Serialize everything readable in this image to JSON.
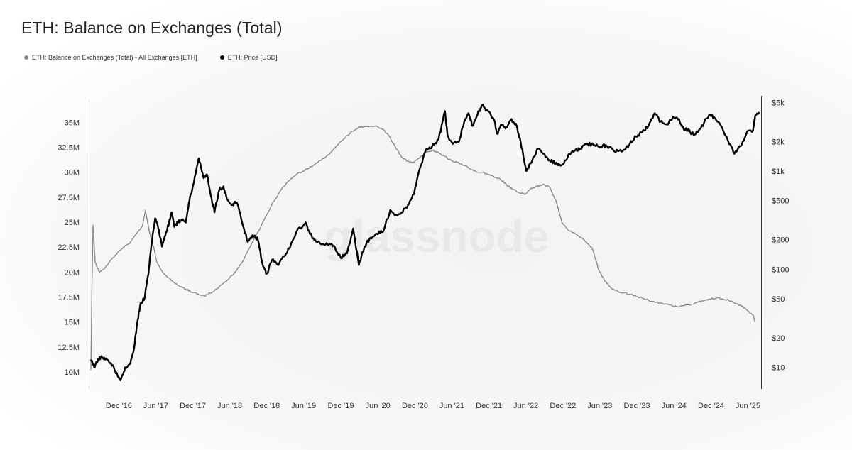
{
  "title": "ETH: Balance on Exchanges (Total)",
  "watermark": "glassnode",
  "legend": [
    {
      "label": "ETH: Balance on Exchanges (Total) - All Exchanges [ETH]",
      "color": "#8a8a8a"
    },
    {
      "label": "ETH: Price [USD]",
      "color": "#000000"
    }
  ],
  "chart_data": {
    "type": "line",
    "title": "ETH: Balance on Exchanges (Total)",
    "x_ticks": [
      "Dec '16",
      "Jun '17",
      "Dec '17",
      "Jun '18",
      "Dec '18",
      "Jun '19",
      "Dec '19",
      "Jun '20",
      "Dec '20",
      "Jun '21",
      "Dec '21",
      "Jun '22",
      "Dec '22",
      "Jun '23",
      "Dec '23",
      "Jun '24",
      "Dec '24",
      "Jun '25"
    ],
    "y_left": {
      "ticks": [
        "10M",
        "12.5M",
        "15M",
        "17.5M",
        "20M",
        "22.5M",
        "25M",
        "27.5M",
        "30M",
        "32.5M",
        "35M"
      ],
      "range": [
        8.3,
        37.3
      ],
      "unit": "M ETH"
    },
    "y_right": {
      "scale": "log",
      "ticks": [
        "$10",
        "$20",
        "$50",
        "$100",
        "$200",
        "$500",
        "$1k",
        "$2k",
        "$5k"
      ],
      "tick_values": [
        10,
        20,
        50,
        100,
        200,
        500,
        1000,
        2000,
        5000
      ],
      "range": [
        6,
        5400
      ]
    },
    "grid": false,
    "legend_position": "top-left",
    "series": [
      {
        "name": "ETH: Balance on Exchanges (Total) - All Exchanges [ETH]",
        "axis": "left",
        "color": "#8a8a8a",
        "x": [
          "2016-07-30",
          "2016-08-05",
          "2016-08-10",
          "2016-08-20",
          "2016-09-10",
          "2016-10-10",
          "2016-11-10",
          "2016-12-10",
          "2017-01-10",
          "2017-02-10",
          "2017-03-10",
          "2017-04-10",
          "2017-04-25",
          "2017-05-15",
          "2017-06-05",
          "2017-06-20",
          "2017-07-10",
          "2017-08-10",
          "2017-09-10",
          "2017-10-10",
          "2017-11-10",
          "2017-12-10",
          "2018-01-10",
          "2018-02-10",
          "2018-03-10",
          "2018-04-10",
          "2018-05-10",
          "2018-06-10",
          "2018-07-10",
          "2018-08-10",
          "2018-09-10",
          "2018-10-10",
          "2018-11-10",
          "2018-12-10",
          "2019-01-10",
          "2019-02-10",
          "2019-03-10",
          "2019-04-10",
          "2019-05-10",
          "2019-06-10",
          "2019-07-10",
          "2019-08-10",
          "2019-09-10",
          "2019-10-10",
          "2019-11-10",
          "2019-12-10",
          "2020-01-10",
          "2020-02-10",
          "2020-03-10",
          "2020-04-10",
          "2020-05-10",
          "2020-06-10",
          "2020-07-10",
          "2020-08-10",
          "2020-09-10",
          "2020-10-10",
          "2020-11-10",
          "2020-12-10",
          "2021-01-10",
          "2021-02-10",
          "2021-03-10",
          "2021-04-10",
          "2021-05-10",
          "2021-06-10",
          "2021-07-10",
          "2021-08-10",
          "2021-09-10",
          "2021-10-10",
          "2021-11-10",
          "2021-12-10",
          "2022-01-10",
          "2022-02-10",
          "2022-03-10",
          "2022-04-10",
          "2022-05-10",
          "2022-06-10",
          "2022-07-10",
          "2022-08-10",
          "2022-09-10",
          "2022-10-10",
          "2022-11-10",
          "2022-12-10",
          "2023-01-10",
          "2023-02-10",
          "2023-03-10",
          "2023-04-10",
          "2023-05-10",
          "2023-06-10",
          "2023-07-10",
          "2023-08-10",
          "2023-09-10",
          "2023-10-10",
          "2023-11-10",
          "2023-12-10",
          "2024-01-10",
          "2024-02-10",
          "2024-03-10",
          "2024-04-10",
          "2024-05-10",
          "2024-06-10",
          "2024-07-10",
          "2024-08-10",
          "2024-09-10",
          "2024-10-10",
          "2024-11-10",
          "2024-12-10",
          "2025-01-10",
          "2025-02-10",
          "2025-03-10",
          "2025-04-10",
          "2025-05-10",
          "2025-06-10",
          "2025-07-10",
          "2025-07-20"
        ],
        "values": [
          10.2,
          19.5,
          24.7,
          21.0,
          20.0,
          20.5,
          21.3,
          22.0,
          22.5,
          23.0,
          23.8,
          24.6,
          26.2,
          24.0,
          22.5,
          21.0,
          20.3,
          19.5,
          19.0,
          18.6,
          18.3,
          18.0,
          17.8,
          17.6,
          17.9,
          18.3,
          18.8,
          19.3,
          20.0,
          20.8,
          22.0,
          23.2,
          24.3,
          25.6,
          26.8,
          27.8,
          28.6,
          29.3,
          29.8,
          30.1,
          30.4,
          30.8,
          31.2,
          31.7,
          32.3,
          33.0,
          33.6,
          34.1,
          34.5,
          34.6,
          34.6,
          34.6,
          34.3,
          33.6,
          32.5,
          31.5,
          31.1,
          31.0,
          31.5,
          32.0,
          32.2,
          32.0,
          31.6,
          31.2,
          31.0,
          30.7,
          30.4,
          30.1,
          30.0,
          29.8,
          29.5,
          29.3,
          28.8,
          28.3,
          28.0,
          27.8,
          28.4,
          28.6,
          28.8,
          28.5,
          27.2,
          25.0,
          24.2,
          23.9,
          23.5,
          23.0,
          22.3,
          20.2,
          19.1,
          18.4,
          18.1,
          17.9,
          17.8,
          17.6,
          17.4,
          17.2,
          17.0,
          16.9,
          16.8,
          16.6,
          16.5,
          16.7,
          16.8,
          17.0,
          17.1,
          17.3,
          17.4,
          17.3,
          17.2,
          16.9,
          16.7,
          16.2,
          15.7,
          15.0
        ]
      },
      {
        "name": "ETH: Price [USD]",
        "axis": "right",
        "color": "#000000",
        "x": [
          "2016-07-30",
          "2016-08-15",
          "2016-09-01",
          "2016-09-20",
          "2016-10-10",
          "2016-11-01",
          "2016-11-20",
          "2016-12-10",
          "2016-12-25",
          "2017-01-15",
          "2017-02-10",
          "2017-03-01",
          "2017-03-15",
          "2017-04-01",
          "2017-04-20",
          "2017-05-10",
          "2017-05-25",
          "2017-06-12",
          "2017-07-01",
          "2017-07-16",
          "2017-08-01",
          "2017-08-20",
          "2017-09-01",
          "2017-09-15",
          "2017-10-01",
          "2017-10-20",
          "2017-11-10",
          "2017-11-25",
          "2017-12-15",
          "2018-01-13",
          "2018-02-06",
          "2018-02-25",
          "2018-03-15",
          "2018-04-01",
          "2018-04-25",
          "2018-05-15",
          "2018-06-01",
          "2018-06-25",
          "2018-07-20",
          "2018-08-15",
          "2018-09-12",
          "2018-10-10",
          "2018-11-01",
          "2018-11-25",
          "2018-12-15",
          "2019-01-10",
          "2019-02-10",
          "2019-03-10",
          "2019-04-10",
          "2019-05-10",
          "2019-06-25",
          "2019-07-15",
          "2019-08-10",
          "2019-09-15",
          "2019-10-10",
          "2019-11-10",
          "2019-12-15",
          "2020-01-15",
          "2020-02-14",
          "2020-03-13",
          "2020-04-10",
          "2020-05-10",
          "2020-06-10",
          "2020-07-10",
          "2020-08-15",
          "2020-09-10",
          "2020-10-10",
          "2020-11-10",
          "2020-12-10",
          "2021-01-10",
          "2021-02-10",
          "2021-03-10",
          "2021-04-10",
          "2021-05-12",
          "2021-05-25",
          "2021-06-20",
          "2021-07-20",
          "2021-08-15",
          "2021-09-05",
          "2021-09-25",
          "2021-10-20",
          "2021-11-10",
          "2021-12-10",
          "2022-01-10",
          "2022-01-25",
          "2022-02-15",
          "2022-03-10",
          "2022-04-05",
          "2022-05-01",
          "2022-05-20",
          "2022-06-18",
          "2022-07-10",
          "2022-08-15",
          "2022-09-10",
          "2022-10-10",
          "2022-11-10",
          "2022-11-25",
          "2022-12-20",
          "2023-01-15",
          "2023-02-15",
          "2023-03-10",
          "2023-04-15",
          "2023-05-15",
          "2023-06-15",
          "2023-07-15",
          "2023-08-20",
          "2023-09-15",
          "2023-10-15",
          "2023-11-10",
          "2023-12-10",
          "2024-01-10",
          "2024-02-10",
          "2024-03-12",
          "2024-04-10",
          "2024-05-10",
          "2024-06-10",
          "2024-07-10",
          "2024-08-05",
          "2024-08-25",
          "2024-09-10",
          "2024-10-10",
          "2024-11-10",
          "2024-12-10",
          "2025-01-10",
          "2025-02-10",
          "2025-03-10",
          "2025-04-09",
          "2025-05-10",
          "2025-06-10",
          "2025-07-10",
          "2025-07-20",
          "2025-08-10"
        ],
        "values": [
          12,
          10,
          11.5,
          13,
          12,
          11,
          10,
          8,
          7.5,
          10,
          11,
          16,
          28,
          45,
          50,
          90,
          180,
          330,
          250,
          170,
          220,
          300,
          380,
          270,
          300,
          320,
          300,
          470,
          700,
          1350,
          850,
          900,
          550,
          380,
          650,
          700,
          520,
          450,
          480,
          300,
          190,
          220,
          200,
          110,
          90,
          125,
          110,
          135,
          170,
          240,
          300,
          230,
          200,
          180,
          180,
          175,
          130,
          145,
          260,
          110,
          170,
          210,
          230,
          240,
          400,
          360,
          380,
          450,
          580,
          1100,
          1700,
          1800,
          2100,
          4100,
          2300,
          1900,
          2000,
          3200,
          3900,
          2900,
          3800,
          4700,
          4100,
          3300,
          2400,
          3000,
          2800,
          3400,
          2900,
          2000,
          1000,
          1200,
          1700,
          1500,
          1300,
          1200,
          1150,
          1200,
          1500,
          1650,
          1700,
          1900,
          1850,
          1750,
          1850,
          1650,
          1600,
          1650,
          1900,
          2250,
          2500,
          2900,
          3900,
          3200,
          3000,
          3600,
          3400,
          2600,
          2700,
          2400,
          2500,
          3100,
          3800,
          3300,
          2700,
          2000,
          1500,
          1800,
          2500,
          2600,
          3600,
          4000
        ]
      }
    ]
  }
}
